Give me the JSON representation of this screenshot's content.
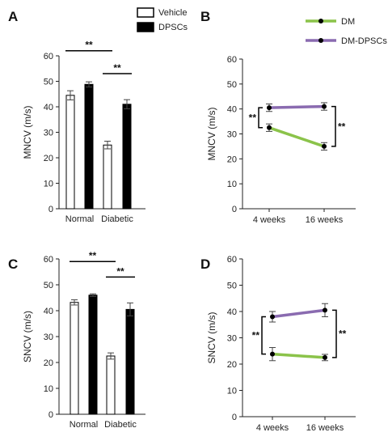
{
  "chart_data": [
    {
      "panel": "A",
      "type": "bar",
      "ylabel": "MNCV (m/s)",
      "ylim": [
        0,
        60
      ],
      "yticks": [
        0,
        10,
        20,
        30,
        40,
        50,
        60
      ],
      "categories": [
        "Normal",
        "Diabetic"
      ],
      "series": [
        {
          "name": "Vehicle",
          "values": [
            44.5,
            25
          ],
          "errors": [
            1.8,
            1.5
          ],
          "color": "#ffffff"
        },
        {
          "name": "DPSCs",
          "values": [
            48.8,
            41
          ],
          "errors": [
            1,
            1.8
          ],
          "color": "#000000"
        }
      ],
      "significance": [
        {
          "label": "**",
          "from": [
            0,
            0
          ],
          "to": [
            1,
            0
          ],
          "y": 62
        },
        {
          "label": "**",
          "from": [
            1,
            0
          ],
          "to": [
            1,
            1
          ],
          "y": 53
        }
      ],
      "legend_position": "top-right"
    },
    {
      "panel": "B",
      "type": "line",
      "ylabel": "MNCV (m/s)",
      "ylim": [
        0,
        60
      ],
      "yticks": [
        0,
        10,
        20,
        30,
        40,
        50,
        60
      ],
      "categories": [
        "4 weeks",
        "16 weeks"
      ],
      "series": [
        {
          "name": "DM",
          "values": [
            32.5,
            25
          ],
          "errors": [
            1.5,
            1.5
          ],
          "color": "#8bc34a"
        },
        {
          "name": "DM-DPSCs",
          "values": [
            40.5,
            41
          ],
          "errors": [
            1.5,
            1.5
          ],
          "color": "#8a6bb0"
        }
      ],
      "significance": [
        {
          "label": "**",
          "at": "4 weeks",
          "y_range": [
            32.5,
            40.5
          ]
        },
        {
          "label": "**",
          "at": "16 weeks",
          "y_range": [
            25,
            41
          ]
        }
      ],
      "legend_position": "top"
    },
    {
      "panel": "C",
      "type": "bar",
      "ylabel": "SNCV (m/s)",
      "ylim": [
        0,
        60
      ],
      "yticks": [
        0,
        10,
        20,
        30,
        40,
        50,
        60
      ],
      "categories": [
        "Normal",
        "Diabetic"
      ],
      "series": [
        {
          "name": "Vehicle",
          "values": [
            43.2,
            22.5
          ],
          "errors": [
            1,
            1.2
          ],
          "color": "#ffffff"
        },
        {
          "name": "DPSCs",
          "values": [
            46,
            40.5
          ],
          "errors": [
            0.5,
            2.5
          ],
          "color": "#000000"
        }
      ],
      "significance": [
        {
          "label": "**",
          "from": [
            0,
            0
          ],
          "to": [
            1,
            0
          ],
          "y": 59
        },
        {
          "label": "**",
          "from": [
            1,
            0
          ],
          "to": [
            1,
            1
          ],
          "y": 53
        }
      ]
    },
    {
      "panel": "D",
      "type": "line",
      "ylabel": "SNCV (m/s)",
      "ylim": [
        0,
        60
      ],
      "yticks": [
        0,
        10,
        20,
        30,
        40,
        50,
        60
      ],
      "categories": [
        "4 weeks",
        "16 weeks"
      ],
      "series": [
        {
          "name": "DM",
          "values": [
            23.8,
            22.5
          ],
          "errors": [
            2.5,
            1.2
          ],
          "color": "#8bc34a"
        },
        {
          "name": "DM-DPSCs",
          "values": [
            38,
            40.5
          ],
          "errors": [
            2,
            2.5
          ],
          "color": "#8a6bb0"
        }
      ],
      "significance": [
        {
          "label": "**",
          "at": "4 weeks",
          "y_range": [
            23.8,
            38
          ]
        },
        {
          "label": "**",
          "at": "16 weeks",
          "y_range": [
            22.5,
            40.5
          ]
        }
      ]
    }
  ]
}
